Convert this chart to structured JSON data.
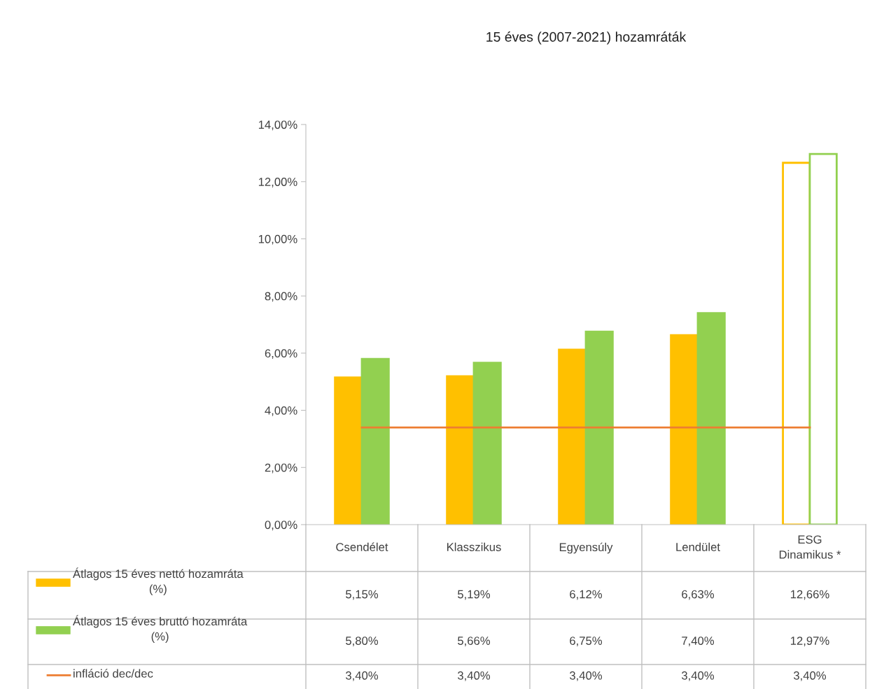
{
  "chart_data": {
    "type": "bar",
    "title": "15 éves (2007-2021) hozamráták",
    "categories": [
      "Csendélet",
      "Klasszikus",
      "Egyensúly",
      "Lendület",
      "ESG Dinamikus *"
    ],
    "series": [
      {
        "name": "Átlagos 15 éves nettó hozamráta (%)",
        "color": "#ffc000",
        "colors": [
          "#ffc000",
          "#ffc000",
          "#ffc000",
          "#ffc000",
          "#ffffff"
        ],
        "values": [
          5.15,
          5.19,
          6.12,
          6.63,
          12.66
        ],
        "value_labels": [
          "5,15%",
          "5,19%",
          "6,12%",
          "6,63%",
          "12,66%"
        ]
      },
      {
        "name": "Átlagos 15 éves bruttó hozamráta (%)",
        "color": "#92d050",
        "colors": [
          "#92d050",
          "#92d050",
          "#92d050",
          "#92d050",
          "#ffffff"
        ],
        "values": [
          5.8,
          5.66,
          6.75,
          7.4,
          12.97
        ],
        "value_labels": [
          "5,80%",
          "5,66%",
          "6,75%",
          "7,40%",
          "12,97%"
        ]
      },
      {
        "name": "infláció dec/dec",
        "type": "line",
        "color": "#ed7d31",
        "values": [
          3.4,
          3.4,
          3.4,
          3.4,
          3.4
        ],
        "value_labels": [
          "3,40%",
          "3,40%",
          "3,40%",
          "3,40%",
          "3,40%"
        ]
      }
    ],
    "ylim": [
      0,
      14
    ],
    "yticks": [
      {
        "value": 0,
        "label": "0,00%"
      },
      {
        "value": 2,
        "label": "2,00%"
      },
      {
        "value": 4,
        "label": "4,00%"
      },
      {
        "value": 6,
        "label": "6,00%"
      },
      {
        "value": 8,
        "label": "8,00%"
      },
      {
        "value": 10,
        "label": "10,00%"
      },
      {
        "value": 12,
        "label": "12,00%"
      },
      {
        "value": 14,
        "label": "14,00%"
      }
    ],
    "grid": false,
    "legend": "bottom",
    "data_labels": true
  }
}
